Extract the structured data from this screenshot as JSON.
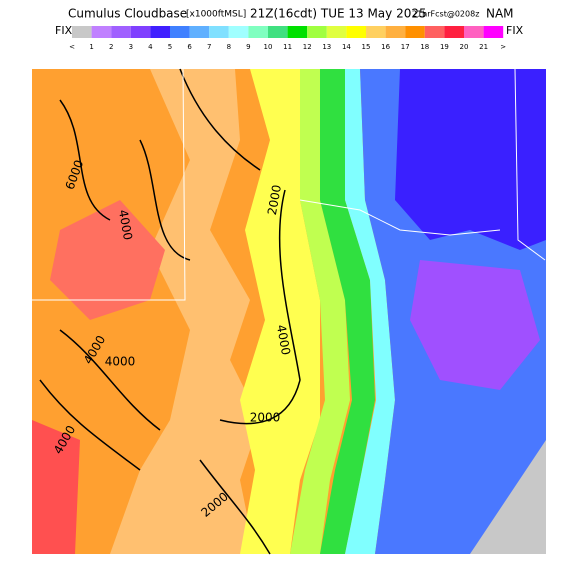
{
  "title": {
    "product": "Cumulus Cloudbase",
    "units": "[x1000ftMSL]",
    "time": "21Z(16cdt) TUE 13 May 2025",
    "forecast": "21hrFcst@0208z",
    "model": "NAM"
  },
  "colorbar": {
    "left_label": "FIX",
    "right_label": "FIX",
    "colors": [
      "#c8c8c8",
      "#c080ff",
      "#a060ff",
      "#8040ff",
      "#4020ff",
      "#4080ff",
      "#60b0ff",
      "#80e0ff",
      "#a0ffff",
      "#80ffc0",
      "#40e080",
      "#00e000",
      "#a0ff40",
      "#e0ff40",
      "#ffff00",
      "#ffd060",
      "#ffb040",
      "#ff9000",
      "#ff6060",
      "#ff2040",
      "#ff60c0",
      "#ff00ff"
    ],
    "labels": [
      "<",
      "1",
      "2",
      "3",
      "4",
      "5",
      "6",
      "7",
      "8",
      "9",
      "10",
      "11",
      "12",
      "13",
      "14",
      "15",
      "16",
      "17",
      "18",
      "19",
      "20",
      "21",
      ">"
    ]
  },
  "contour_labels": [
    "6000",
    "4000",
    "4000",
    "4000",
    "2000",
    "4000",
    "2000",
    "2000",
    "4000"
  ]
}
